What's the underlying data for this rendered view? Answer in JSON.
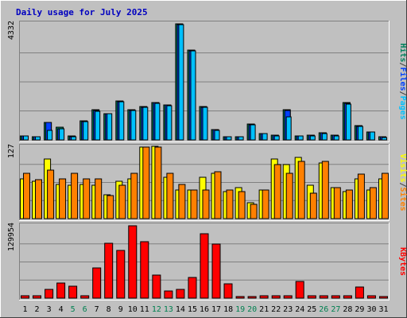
{
  "chart_data": {
    "type": "bar",
    "title": "Daily usage for July 2025",
    "categories": [
      "1",
      "2",
      "3",
      "4",
      "5",
      "6",
      "7",
      "8",
      "9",
      "10",
      "11",
      "12",
      "13",
      "14",
      "15",
      "16",
      "17",
      "18",
      "19",
      "20",
      "21",
      "22",
      "23",
      "24",
      "25",
      "26",
      "27",
      "28",
      "29",
      "30",
      "31"
    ],
    "weekend_days": [
      "5",
      "6",
      "12",
      "13",
      "19",
      "20",
      "26",
      "27"
    ],
    "grid": true,
    "panels": [
      {
        "name": "hits-files-pages",
        "max_label": "4332",
        "ylim": [
          0,
          4332
        ],
        "legend": [
          {
            "text": "Pages",
            "color": "#00c0ff"
          },
          {
            "text": "/",
            "color": "#404040"
          },
          {
            "text": "Files",
            "color": "#0040ff"
          },
          {
            "text": "/",
            "color": "#404040"
          },
          {
            "text": "Hits",
            "color": "#00805c"
          }
        ],
        "series": [
          {
            "name": "Hits",
            "color": "#00805c",
            "values": [
              160,
              130,
              660,
              470,
              140,
              700,
              1120,
              990,
              1440,
              1130,
              1250,
              1400,
              1320,
              4330,
              3350,
              1250,
              400,
              120,
              120,
              580,
              250,
              180,
              1140,
              160,
              180,
              270,
              180,
              1390,
              530,
              310,
              120
            ]
          },
          {
            "name": "Files",
            "color": "#0040ff",
            "values": [
              150,
              120,
              650,
              430,
              130,
              690,
              1100,
              980,
              1420,
              1110,
              1220,
              1380,
              1300,
              4310,
              3320,
              1230,
              380,
              110,
              110,
              560,
              240,
              170,
              1100,
              150,
              170,
              260,
              170,
              1370,
              510,
              300,
              110
            ]
          },
          {
            "name": "Pages",
            "color": "#00c0ff",
            "values": [
              150,
              120,
              360,
              410,
              130,
              670,
              1060,
              970,
              1420,
              1100,
              1210,
              1360,
              1280,
              4310,
              3320,
              1210,
              360,
              110,
              110,
              550,
              230,
              160,
              850,
              150,
              160,
              250,
              160,
              1340,
              500,
              290,
              100
            ]
          }
        ]
      },
      {
        "name": "visits-sites",
        "max_label": "127",
        "ylim": [
          0,
          127
        ],
        "legend": [
          {
            "text": "Sites",
            "color": "#ff8000"
          },
          {
            "text": "/",
            "color": "#404040"
          },
          {
            "text": "Visits",
            "color": "#ffff00"
          }
        ],
        "series": [
          {
            "name": "Visits",
            "color": "#ffff00",
            "values": [
              70,
              65,
              105,
              60,
              58,
              60,
              58,
              42,
              65,
              70,
              125,
              127,
              72,
              50,
              50,
              72,
              80,
              48,
              55,
              28,
              50,
              105,
              95,
              108,
              58,
              98,
              55,
              48,
              70,
              50,
              70
            ]
          },
          {
            "name": "Sites",
            "color": "#ff8000",
            "values": [
              80,
              68,
              85,
              70,
              80,
              70,
              70,
              40,
              58,
              80,
              125,
              125,
              80,
              60,
              50,
              50,
              82,
              50,
              48,
              25,
              50,
              95,
              80,
              100,
              45,
              100,
              55,
              50,
              78,
              55,
              80
            ]
          }
        ]
      },
      {
        "name": "kbytes",
        "max_label": "129954",
        "ylim": [
          0,
          129954
        ],
        "legend": [
          {
            "text": "KBytes",
            "color": "#ff0000"
          }
        ],
        "series": [
          {
            "name": "KBytes",
            "color": "#ff0000",
            "values": [
              4300,
              4300,
              15200,
              27800,
              21700,
              3800,
              54300,
              98900,
              85000,
              129954,
              101700,
              41700,
              13100,
              15200,
              36900,
              115200,
              96700,
              26100,
              2200,
              2200,
              3800,
              3800,
              3800,
              30400,
              3800,
              3800,
              3800,
              3800,
              19500,
              3800,
              2200
            ]
          }
        ]
      }
    ]
  }
}
